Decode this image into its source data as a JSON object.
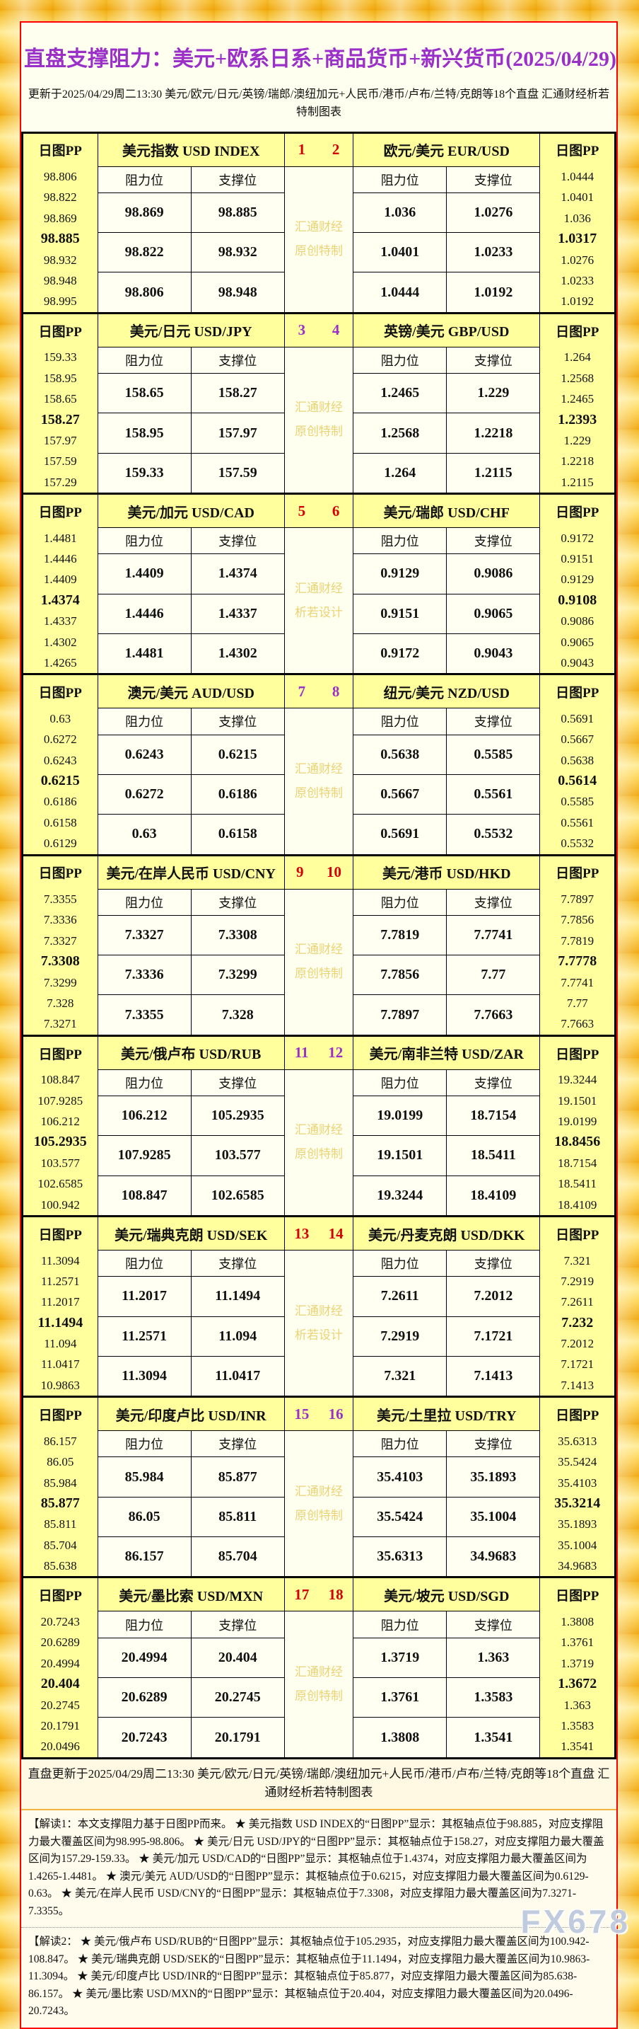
{
  "page": {
    "title": "直盘支撑阻力：美元+欧系日系+商品货币+新兴货币(2025/04/29)",
    "subtitle": "更新于2025/04/29周二13:30 美元/欧元/日元/英镑/瑞郎/澳纽加元+人民币/港币/卢布/兰特/克朗等18个直盘 汇通财经析若特制图表",
    "footer": "直盘更新于2025/04/29周二13:30 美元/欧元/日元/英镑/瑞郎/澳纽加元+人民币/港币/卢布/兰特/克朗等18个直盘 汇通财经析若特制图表",
    "note1": "【解读1：本文支撑阻力基于日图PP而来。 ★ 美元指数 USD INDEX的“日图PP”显示：其枢轴点位于98.885，对应支撑阻力最大覆盖区间为98.995-98.806。 ★ 美元/日元 USD/JPY的“日图PP”显示：其枢轴点位于158.27，对应支撑阻力最大覆盖区间为157.29-159.33。 ★ 美元/加元 USD/CAD的“日图PP”显示：其枢轴点位于1.4374，对应支撑阻力最大覆盖区间为1.4265-1.4481。 ★ 澳元/美元 AUD/USD的“日图PP”显示：其枢轴点位于0.6215，对应支撑阻力最大覆盖区间为0.6129-0.63。 ★ 美元/在岸人民币 USD/CNY的“日图PP”显示：其枢轴点位于7.3308，对应支撑阻力最大覆盖区间为7.3271-7.3355。",
    "note2": "【解读2： ★ 美元/俄卢布 USD/RUB的“日图PP”显示：其枢轴点位于105.2935，对应支撑阻力最大覆盖区间为100.942-108.847。 ★ 美元/瑞典克朗 USD/SEK的“日图PP”显示：其枢轴点位于11.1494，对应支撑阻力最大覆盖区间为10.9863-11.3094。 ★ 美元/印度卢比 USD/INR的“日图PP”显示：其枢轴点位于85.877，对应支撑阻力最大覆盖区间为85.638-86.157。 ★ 美元/墨比索 USD/MXN的“日图PP”显示：其枢轴点位于20.404，对应支撑阻力最大覆盖区间为20.0496-20.7243。",
    "site_watermark": "FX678"
  },
  "labels": {
    "pp": "日图PP",
    "resistance": "阻力位",
    "support": "支撑位"
  },
  "colors": {
    "red": "#D40000",
    "purple": "#9B30C8",
    "cell_yellow": "#FFFF9E",
    "ivory": "#FFFFEF",
    "frame_red": "#FF0000"
  },
  "chart_data": {
    "type": "table",
    "title": "直盘支撑阻力：美元+欧系日系+商品货币+新兴货币(2025/04/29)",
    "updated": "2025/04/29 周二 13:30",
    "blocks": [
      {
        "nums": [
          "1",
          "2"
        ],
        "theme": "red",
        "watermark": [
          "汇通财经",
          "原创特制"
        ],
        "left": {
          "name_cn": "美元指数",
          "name_en": "USD INDEX",
          "pivot": "98.885",
          "rows": [
            [
              "98.869",
              "98.885"
            ],
            [
              "98.822",
              "98.932"
            ],
            [
              "98.806",
              "98.948"
            ]
          ],
          "pp": [
            "98.806",
            "98.822",
            "98.869",
            "98.885",
            "98.932",
            "98.948",
            "98.995"
          ]
        },
        "right": {
          "name_cn": "欧元/美元",
          "name_en": "EUR/USD",
          "pivot": "1.0317",
          "rows": [
            [
              "1.036",
              "1.0276"
            ],
            [
              "1.0401",
              "1.0233"
            ],
            [
              "1.0444",
              "1.0192"
            ]
          ],
          "pp": [
            "1.0444",
            "1.0401",
            "1.036",
            "1.0317",
            "1.0276",
            "1.0233",
            "1.0192"
          ]
        }
      },
      {
        "nums": [
          "3",
          "4"
        ],
        "theme": "purple",
        "watermark": [
          "汇通财经",
          "原创特制"
        ],
        "left": {
          "name_cn": "美元/日元",
          "name_en": "USD/JPY",
          "pivot": "158.27",
          "rows": [
            [
              "158.65",
              "158.27"
            ],
            [
              "158.95",
              "157.97"
            ],
            [
              "159.33",
              "157.59"
            ]
          ],
          "pp": [
            "159.33",
            "158.95",
            "158.65",
            "158.27",
            "157.97",
            "157.59",
            "157.29"
          ]
        },
        "right": {
          "name_cn": "英镑/美元",
          "name_en": "GBP/USD",
          "pivot": "1.2393",
          "rows": [
            [
              "1.2465",
              "1.229"
            ],
            [
              "1.2568",
              "1.2218"
            ],
            [
              "1.264",
              "1.2115"
            ]
          ],
          "pp": [
            "1.264",
            "1.2568",
            "1.2465",
            "1.2393",
            "1.229",
            "1.2218",
            "1.2115"
          ]
        }
      },
      {
        "nums": [
          "5",
          "6"
        ],
        "theme": "red",
        "watermark": [
          "汇通财经",
          "析若设计"
        ],
        "left": {
          "name_cn": "美元/加元",
          "name_en": "USD/CAD",
          "pivot": "1.4374",
          "rows": [
            [
              "1.4409",
              "1.4374"
            ],
            [
              "1.4446",
              "1.4337"
            ],
            [
              "1.4481",
              "1.4302"
            ]
          ],
          "pp": [
            "1.4481",
            "1.4446",
            "1.4409",
            "1.4374",
            "1.4337",
            "1.4302",
            "1.4265"
          ]
        },
        "right": {
          "name_cn": "美元/瑞郎",
          "name_en": "USD/CHF",
          "pivot": "0.9108",
          "rows": [
            [
              "0.9129",
              "0.9086"
            ],
            [
              "0.9151",
              "0.9065"
            ],
            [
              "0.9172",
              "0.9043"
            ]
          ],
          "pp": [
            "0.9172",
            "0.9151",
            "0.9129",
            "0.9108",
            "0.9086",
            "0.9065",
            "0.9043"
          ]
        }
      },
      {
        "nums": [
          "7",
          "8"
        ],
        "theme": "purple",
        "watermark": [
          "汇通财经",
          "原创特制"
        ],
        "left": {
          "name_cn": "澳元/美元",
          "name_en": "AUD/USD",
          "pivot": "0.6215",
          "rows": [
            [
              "0.6243",
              "0.6215"
            ],
            [
              "0.6272",
              "0.6186"
            ],
            [
              "0.63",
              "0.6158"
            ]
          ],
          "pp": [
            "0.63",
            "0.6272",
            "0.6243",
            "0.6215",
            "0.6186",
            "0.6158",
            "0.6129"
          ]
        },
        "right": {
          "name_cn": "纽元/美元",
          "name_en": "NZD/USD",
          "pivot": "0.5614",
          "rows": [
            [
              "0.5638",
              "0.5585"
            ],
            [
              "0.5667",
              "0.5561"
            ],
            [
              "0.5691",
              "0.5532"
            ]
          ],
          "pp": [
            "0.5691",
            "0.5667",
            "0.5638",
            "0.5614",
            "0.5585",
            "0.5561",
            "0.5532"
          ]
        }
      },
      {
        "nums": [
          "9",
          "10"
        ],
        "theme": "red",
        "watermark": [
          "汇通财经",
          "原创特制"
        ],
        "left": {
          "name_cn": "美元/在岸人民币",
          "name_en": "USD/CNY",
          "pivot": "7.3308",
          "rows": [
            [
              "7.3327",
              "7.3308"
            ],
            [
              "7.3336",
              "7.3299"
            ],
            [
              "7.3355",
              "7.328"
            ]
          ],
          "pp": [
            "7.3355",
            "7.3336",
            "7.3327",
            "7.3308",
            "7.3299",
            "7.328",
            "7.3271"
          ]
        },
        "right": {
          "name_cn": "美元/港币",
          "name_en": "USD/HKD",
          "pivot": "7.7778",
          "rows": [
            [
              "7.7819",
              "7.7741"
            ],
            [
              "7.7856",
              "7.77"
            ],
            [
              "7.7897",
              "7.7663"
            ]
          ],
          "pp": [
            "7.7897",
            "7.7856",
            "7.7819",
            "7.7778",
            "7.7741",
            "7.77",
            "7.7663"
          ]
        }
      },
      {
        "nums": [
          "11",
          "12"
        ],
        "theme": "purple",
        "watermark": [
          "汇通财经",
          "原创特制"
        ],
        "left": {
          "name_cn": "美元/俄卢布",
          "name_en": "USD/RUB",
          "pivot": "105.2935",
          "rows": [
            [
              "106.212",
              "105.2935"
            ],
            [
              "107.9285",
              "103.577"
            ],
            [
              "108.847",
              "102.6585"
            ]
          ],
          "pp": [
            "108.847",
            "107.9285",
            "106.212",
            "105.2935",
            "103.577",
            "102.6585",
            "100.942"
          ]
        },
        "right": {
          "name_cn": "美元/南非兰特",
          "name_en": "USD/ZAR",
          "pivot": "18.8456",
          "rows": [
            [
              "19.0199",
              "18.7154"
            ],
            [
              "19.1501",
              "18.5411"
            ],
            [
              "19.3244",
              "18.4109"
            ]
          ],
          "pp": [
            "19.3244",
            "19.1501",
            "19.0199",
            "18.8456",
            "18.7154",
            "18.5411",
            "18.4109"
          ]
        }
      },
      {
        "nums": [
          "13",
          "14"
        ],
        "theme": "red",
        "watermark": [
          "汇通财经",
          "析若设计"
        ],
        "left": {
          "name_cn": "美元/瑞典克朗",
          "name_en": "USD/SEK",
          "pivot": "11.1494",
          "rows": [
            [
              "11.2017",
              "11.1494"
            ],
            [
              "11.2571",
              "11.094"
            ],
            [
              "11.3094",
              "11.0417"
            ]
          ],
          "pp": [
            "11.3094",
            "11.2571",
            "11.2017",
            "11.1494",
            "11.094",
            "11.0417",
            "10.9863"
          ]
        },
        "right": {
          "name_cn": "美元/丹麦克朗",
          "name_en": "USD/DKK",
          "pivot": "7.232",
          "rows": [
            [
              "7.2611",
              "7.2012"
            ],
            [
              "7.2919",
              "7.1721"
            ],
            [
              "7.321",
              "7.1413"
            ]
          ],
          "pp": [
            "7.321",
            "7.2919",
            "7.2611",
            "7.232",
            "7.2012",
            "7.1721",
            "7.1413"
          ]
        }
      },
      {
        "nums": [
          "15",
          "16"
        ],
        "theme": "purple",
        "watermark": [
          "汇通财经",
          "原创特制"
        ],
        "left": {
          "name_cn": "美元/印度卢比",
          "name_en": "USD/INR",
          "pivot": "85.877",
          "rows": [
            [
              "85.984",
              "85.877"
            ],
            [
              "86.05",
              "85.811"
            ],
            [
              "86.157",
              "85.704"
            ]
          ],
          "pp": [
            "86.157",
            "86.05",
            "85.984",
            "85.877",
            "85.811",
            "85.704",
            "85.638"
          ]
        },
        "right": {
          "name_cn": "美元/土里拉",
          "name_en": "USD/TRY",
          "pivot": "35.3214",
          "rows": [
            [
              "35.4103",
              "35.1893"
            ],
            [
              "35.5424",
              "35.1004"
            ],
            [
              "35.6313",
              "34.9683"
            ]
          ],
          "pp": [
            "35.6313",
            "35.5424",
            "35.4103",
            "35.3214",
            "35.1893",
            "35.1004",
            "34.9683"
          ]
        }
      },
      {
        "nums": [
          "17",
          "18"
        ],
        "theme": "red",
        "watermark": [
          "汇通财经",
          "原创特制"
        ],
        "left": {
          "name_cn": "美元/墨比索",
          "name_en": "USD/MXN",
          "pivot": "20.404",
          "rows": [
            [
              "20.4994",
              "20.404"
            ],
            [
              "20.6289",
              "20.2745"
            ],
            [
              "20.7243",
              "20.1791"
            ]
          ],
          "pp": [
            "20.7243",
            "20.6289",
            "20.4994",
            "20.404",
            "20.2745",
            "20.1791",
            "20.0496"
          ]
        },
        "right": {
          "name_cn": "美元/坡元",
          "name_en": "USD/SGD",
          "pivot": "1.3672",
          "rows": [
            [
              "1.3719",
              "1.363"
            ],
            [
              "1.3761",
              "1.3583"
            ],
            [
              "1.3808",
              "1.3541"
            ]
          ],
          "pp": [
            "1.3808",
            "1.3761",
            "1.3719",
            "1.3672",
            "1.363",
            "1.3583",
            "1.3541"
          ]
        }
      }
    ]
  }
}
